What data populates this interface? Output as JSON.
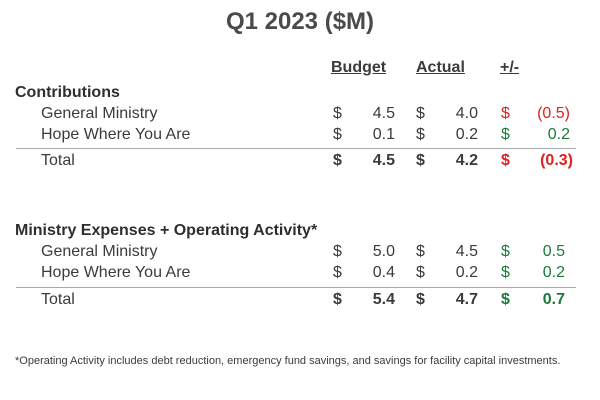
{
  "title": "Q1 2023 ($M)",
  "headers": {
    "budget": "Budget",
    "actual": "Actual",
    "variance": "+/-"
  },
  "colors": {
    "negative": "#e02020",
    "positive": "#1a7a3a",
    "text": "#3b3b3b"
  },
  "sections": [
    {
      "title": "Contributions",
      "rows": [
        {
          "label": "General Ministry",
          "budget_cur": "$",
          "budget": "4.5",
          "actual_cur": "$",
          "actual": "4.0",
          "var_cur": "$",
          "variance": "(0.5)",
          "sign": "negative"
        },
        {
          "label": "Hope Where You Are",
          "budget_cur": "$",
          "budget": "0.1",
          "actual_cur": "$",
          "actual": "0.2",
          "var_cur": "$",
          "variance": "0.2",
          "sign": "positive"
        }
      ],
      "total": {
        "label": "Total",
        "budget_cur": "$",
        "budget": "4.5",
        "actual_cur": "$",
        "actual": "4.2",
        "var_cur": "$",
        "variance": "(0.3)",
        "sign": "negative"
      }
    },
    {
      "title": "Ministry Expenses + Operating Activity*",
      "rows": [
        {
          "label": "General Ministry",
          "budget_cur": "$",
          "budget": "5.0",
          "actual_cur": "$",
          "actual": "4.5",
          "var_cur": "$",
          "variance": "0.5",
          "sign": "positive"
        },
        {
          "label": "Hope Where You Are",
          "budget_cur": "$",
          "budget": "0.4",
          "actual_cur": "$",
          "actual": "0.2",
          "var_cur": "$",
          "variance": "0.2",
          "sign": "positive"
        }
      ],
      "total": {
        "label": "Total",
        "budget_cur": "$",
        "budget": "5.4",
        "actual_cur": "$",
        "actual": "4.7",
        "var_cur": "$",
        "variance": "0.7",
        "sign": "positive"
      }
    }
  ],
  "footnote": "*Operating Activity includes debt reduction, emergency fund savings, and savings for facility capital investments."
}
